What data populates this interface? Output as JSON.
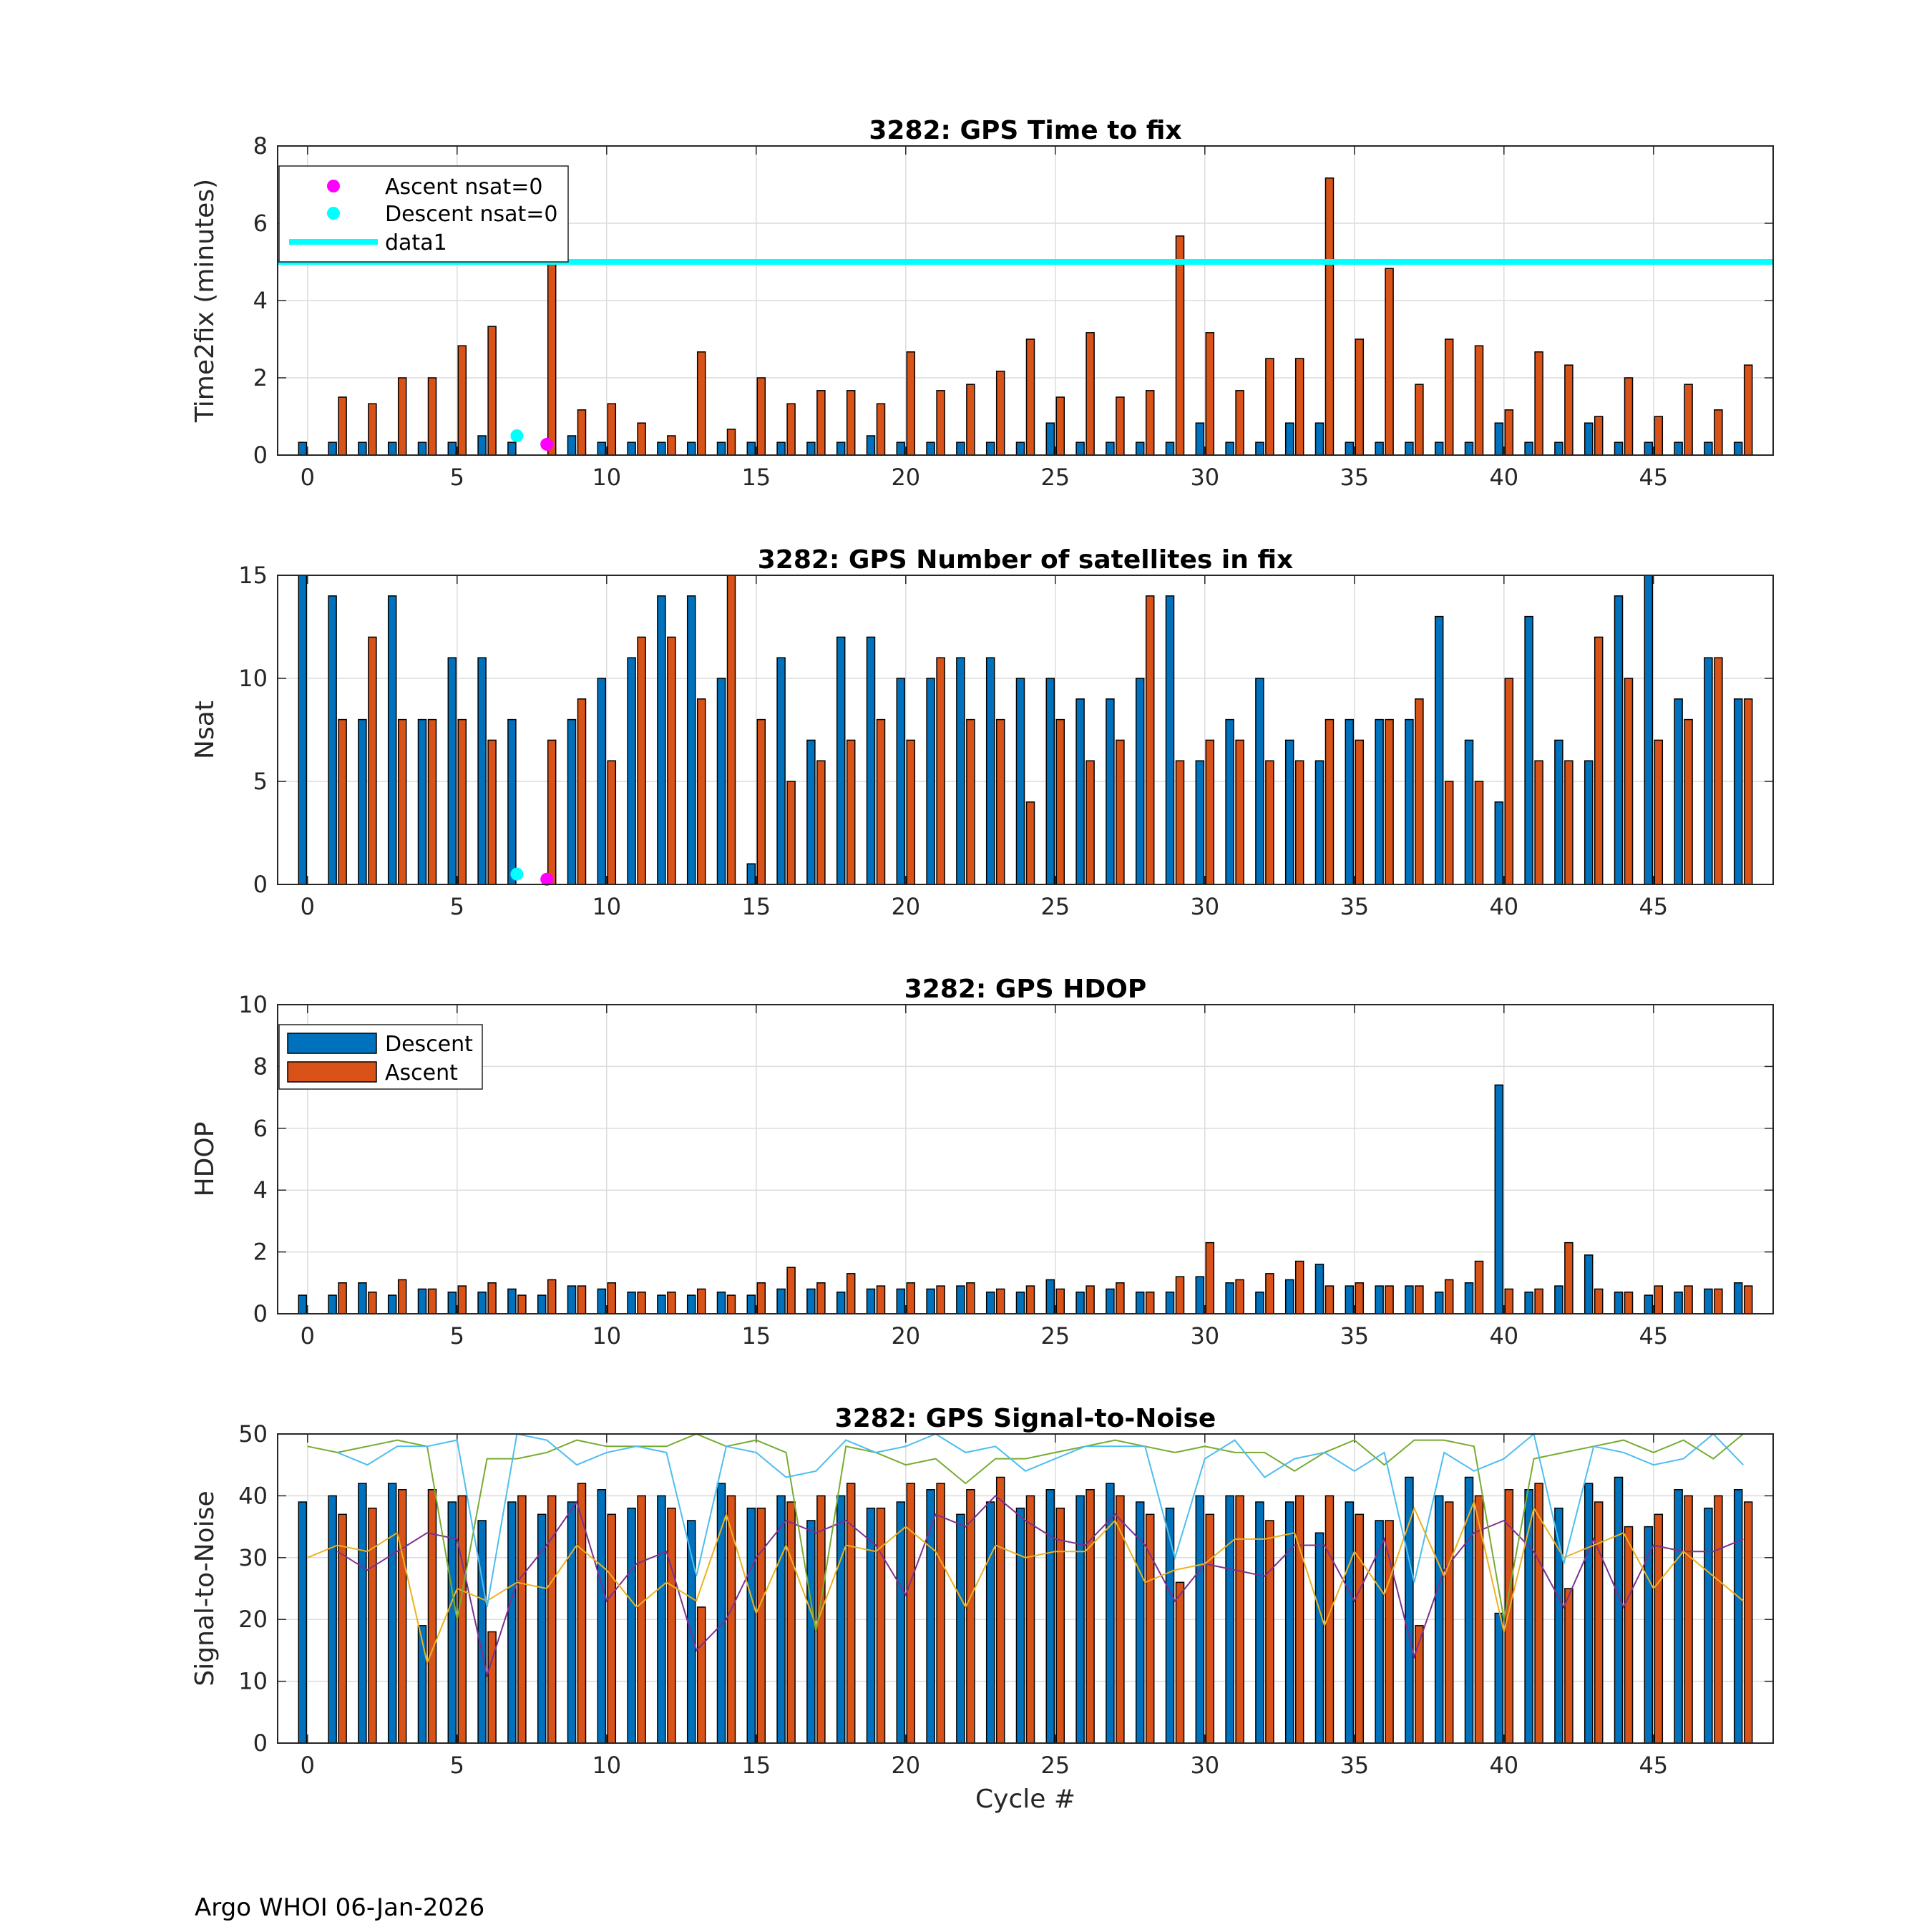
{
  "footer": "Argo WHOI 06-Jan-2026",
  "colors": {
    "descent": "#0072BD",
    "ascent": "#D95319",
    "threshold": "#00FFFF",
    "ascent_nsat0": "#FF00FF",
    "descent_nsat0": "#00FFFF",
    "snr_lines": [
      "#7E2F8E",
      "#EDB120",
      "#77AC30",
      "#4DBEEE"
    ]
  },
  "chart_data": [
    {
      "type": "bar",
      "title": "3282: GPS Time to fix",
      "xlabel": "",
      "ylabel": "Time2fix (minutes)",
      "xlim": [
        -1,
        49
      ],
      "ylim": [
        0,
        8
      ],
      "xticks": [
        "0",
        "5",
        "10",
        "15",
        "20",
        "25",
        "30",
        "35",
        "40",
        "45"
      ],
      "yticks": [
        "0",
        "2",
        "4",
        "6",
        "8"
      ],
      "grid": true,
      "legend_position": "top-left",
      "legend": [
        "Ascent nsat=0",
        "Descent nsat=0",
        "data1"
      ],
      "x": [
        0,
        1,
        2,
        3,
        4,
        5,
        6,
        7,
        8,
        9,
        10,
        11,
        12,
        13,
        14,
        15,
        16,
        17,
        18,
        19,
        20,
        21,
        22,
        23,
        24,
        25,
        26,
        27,
        28,
        29,
        30,
        31,
        32,
        33,
        34,
        35,
        36,
        37,
        38,
        39,
        40,
        41,
        42,
        43,
        44,
        45,
        46,
        47,
        48
      ],
      "series": [
        {
          "name": "Descent",
          "values": [
            0.33,
            0.33,
            0.33,
            0.33,
            0.33,
            0.33,
            0.5,
            0.33,
            null,
            0.5,
            0.33,
            0.33,
            0.33,
            0.33,
            0.33,
            0.33,
            0.33,
            0.33,
            0.33,
            0.5,
            0.33,
            0.33,
            0.33,
            0.33,
            0.33,
            0.83,
            0.33,
            0.33,
            0.33,
            0.33,
            0.83,
            0.33,
            0.33,
            0.83,
            0.83,
            0.33,
            0.33,
            0.33,
            0.33,
            0.33,
            0.83,
            0.33,
            0.33,
            0.83,
            0.33,
            0.33,
            0.33,
            0.33,
            0.33
          ]
        },
        {
          "name": "Ascent",
          "values": [
            null,
            1.5,
            1.33,
            2.0,
            2.0,
            2.83,
            3.33,
            null,
            5.0,
            1.17,
            1.33,
            0.83,
            0.5,
            2.67,
            0.67,
            2.0,
            1.33,
            1.67,
            1.67,
            1.33,
            2.67,
            1.67,
            1.83,
            2.17,
            3.0,
            1.5,
            3.17,
            1.5,
            1.67,
            5.67,
            3.17,
            1.67,
            2.5,
            2.5,
            7.17,
            3.0,
            4.83,
            1.83,
            3.0,
            2.83,
            1.17,
            2.67,
            2.33,
            1.0,
            2.0,
            1.0,
            1.83,
            1.17,
            2.33
          ]
        }
      ],
      "markers": [
        {
          "name": "Ascent nsat=0",
          "x": 8,
          "y": 0.28
        },
        {
          "name": "Descent nsat=0",
          "x": 7,
          "y": 0.5
        }
      ],
      "hline": {
        "name": "data1",
        "y": 5
      }
    },
    {
      "type": "bar",
      "title": "3282: GPS Number of satellites in fix",
      "xlabel": "",
      "ylabel": "Nsat",
      "xlim": [
        -1,
        49
      ],
      "ylim": [
        0,
        15
      ],
      "xticks": [
        "0",
        "5",
        "10",
        "15",
        "20",
        "25",
        "30",
        "35",
        "40",
        "45"
      ],
      "yticks": [
        "0",
        "5",
        "10",
        "15"
      ],
      "grid": true,
      "x": [
        0,
        1,
        2,
        3,
        4,
        5,
        6,
        7,
        8,
        9,
        10,
        11,
        12,
        13,
        14,
        15,
        16,
        17,
        18,
        19,
        20,
        21,
        22,
        23,
        24,
        25,
        26,
        27,
        28,
        29,
        30,
        31,
        32,
        33,
        34,
        35,
        36,
        37,
        38,
        39,
        40,
        41,
        42,
        43,
        44,
        45,
        46,
        47,
        48
      ],
      "series": [
        {
          "name": "Descent",
          "values": [
            15,
            14,
            8,
            14,
            8,
            11,
            11,
            8,
            null,
            8,
            10,
            11,
            14,
            14,
            10,
            1,
            11,
            7,
            12,
            12,
            10,
            10,
            11,
            11,
            10,
            10,
            9,
            9,
            10,
            14,
            6,
            8,
            10,
            7,
            6,
            8,
            8,
            8,
            13,
            7,
            4,
            13,
            7,
            6,
            14,
            15,
            9,
            11,
            9
          ]
        },
        {
          "name": "Ascent",
          "values": [
            null,
            8,
            12,
            8,
            8,
            8,
            7,
            null,
            7,
            9,
            6,
            12,
            12,
            9,
            15,
            8,
            5,
            6,
            7,
            8,
            7,
            11,
            8,
            8,
            4,
            8,
            6,
            7,
            14,
            6,
            7,
            7,
            6,
            6,
            8,
            7,
            8,
            9,
            5,
            5,
            10,
            6,
            6,
            12,
            10,
            7,
            8,
            11,
            9
          ]
        }
      ],
      "markers": [
        {
          "name": "Ascent nsat=0",
          "x": 8,
          "y": 0.25
        },
        {
          "name": "Descent nsat=0",
          "x": 7,
          "y": 0.5
        }
      ]
    },
    {
      "type": "bar",
      "title": "3282: GPS HDOP",
      "xlabel": "",
      "ylabel": "HDOP",
      "xlim": [
        -1,
        49
      ],
      "ylim": [
        0,
        10
      ],
      "xticks": [
        "0",
        "5",
        "10",
        "15",
        "20",
        "25",
        "30",
        "35",
        "40",
        "45"
      ],
      "yticks": [
        "0",
        "2",
        "4",
        "6",
        "8",
        "10"
      ],
      "grid": true,
      "legend_position": "top-left",
      "legend": [
        "Descent",
        "Ascent"
      ],
      "x": [
        0,
        1,
        2,
        3,
        4,
        5,
        6,
        7,
        8,
        9,
        10,
        11,
        12,
        13,
        14,
        15,
        16,
        17,
        18,
        19,
        20,
        21,
        22,
        23,
        24,
        25,
        26,
        27,
        28,
        29,
        30,
        31,
        32,
        33,
        34,
        35,
        36,
        37,
        38,
        39,
        40,
        41,
        42,
        43,
        44,
        45,
        46,
        47,
        48
      ],
      "series": [
        {
          "name": "Descent",
          "values": [
            0.6,
            0.6,
            1.0,
            0.6,
            0.8,
            0.7,
            0.7,
            0.8,
            0.6,
            0.9,
            0.8,
            0.7,
            0.6,
            0.6,
            0.7,
            0.6,
            0.8,
            0.8,
            0.7,
            0.8,
            0.8,
            0.8,
            0.9,
            0.7,
            0.7,
            1.1,
            0.7,
            0.8,
            0.7,
            0.7,
            1.2,
            1.0,
            0.7,
            1.1,
            1.6,
            0.9,
            0.9,
            0.9,
            0.7,
            1.0,
            7.4,
            0.7,
            0.9,
            1.9,
            0.7,
            0.6,
            0.7,
            0.8,
            1.0
          ]
        },
        {
          "name": "Ascent",
          "values": [
            null,
            1.0,
            0.7,
            1.1,
            0.8,
            0.9,
            1.0,
            0.6,
            1.1,
            0.9,
            1.0,
            0.7,
            0.7,
            0.8,
            0.6,
            1.0,
            1.5,
            1.0,
            1.3,
            0.9,
            1.0,
            0.9,
            1.0,
            0.8,
            0.9,
            0.8,
            0.9,
            1.0,
            0.7,
            1.2,
            2.3,
            1.1,
            1.3,
            1.7,
            0.9,
            1.0,
            0.9,
            0.9,
            1.1,
            1.7,
            0.8,
            0.8,
            2.3,
            0.8,
            0.7,
            0.9,
            0.9,
            0.8,
            0.9
          ]
        }
      ]
    },
    {
      "type": "bar",
      "title": "3282: GPS Signal-to-Noise",
      "xlabel": "Cycle #",
      "ylabel": "Signal-to-Noise",
      "xlim": [
        -1,
        49
      ],
      "ylim": [
        0,
        50
      ],
      "xticks": [
        "0",
        "5",
        "10",
        "15",
        "20",
        "25",
        "30",
        "35",
        "40",
        "45"
      ],
      "yticks": [
        "0",
        "10",
        "20",
        "30",
        "40",
        "50"
      ],
      "grid": true,
      "x": [
        0,
        1,
        2,
        3,
        4,
        5,
        6,
        7,
        8,
        9,
        10,
        11,
        12,
        13,
        14,
        15,
        16,
        17,
        18,
        19,
        20,
        21,
        22,
        23,
        24,
        25,
        26,
        27,
        28,
        29,
        30,
        31,
        32,
        33,
        34,
        35,
        36,
        37,
        38,
        39,
        40,
        41,
        42,
        43,
        44,
        45,
        46,
        47,
        48
      ],
      "series": [
        {
          "name": "Descent",
          "values": [
            39,
            40,
            42,
            42,
            19,
            39,
            36,
            39,
            37,
            39,
            41,
            38,
            40,
            36,
            42,
            38,
            40,
            36,
            40,
            38,
            39,
            41,
            37,
            39,
            38,
            41,
            40,
            42,
            39,
            38,
            40,
            40,
            39,
            39,
            34,
            39,
            36,
            43,
            40,
            43,
            21,
            41,
            38,
            42,
            43,
            35,
            41,
            38,
            41
          ]
        },
        {
          "name": "Ascent",
          "values": [
            null,
            37,
            38,
            41,
            41,
            40,
            18,
            40,
            40,
            42,
            37,
            40,
            38,
            22,
            40,
            38,
            39,
            40,
            42,
            38,
            42,
            42,
            41,
            43,
            40,
            38,
            41,
            40,
            37,
            26,
            37,
            40,
            36,
            40,
            40,
            37,
            36,
            19,
            39,
            40,
            41,
            42,
            25,
            39,
            35,
            37,
            40,
            40,
            39
          ]
        }
      ],
      "lines": [
        {
          "name": "snr-line-purple",
          "values": [
            null,
            31,
            28,
            31,
            34,
            33,
            11,
            26,
            32,
            39,
            23,
            29,
            31,
            15,
            20,
            30,
            36,
            34,
            36,
            32,
            24,
            37,
            35,
            40,
            36,
            33,
            32,
            37,
            32,
            23,
            29,
            28,
            27,
            32,
            32,
            23,
            33,
            14,
            28,
            34,
            36,
            31,
            22,
            33,
            22,
            32,
            31,
            31,
            33
          ]
        },
        {
          "name": "snr-line-yellow",
          "values": [
            30,
            32,
            31,
            34,
            13,
            25,
            23,
            26,
            25,
            32,
            28,
            22,
            26,
            23,
            37,
            21,
            32,
            19,
            32,
            31,
            35,
            31,
            22,
            32,
            30,
            31,
            31,
            36,
            26,
            28,
            29,
            33,
            33,
            34,
            19,
            31,
            24,
            38,
            27,
            39,
            18,
            38,
            30,
            32,
            34,
            25,
            31,
            27,
            23
          ]
        },
        {
          "name": "snr-line-green",
          "values": [
            48,
            47,
            48,
            49,
            48,
            20,
            46,
            46,
            47,
            49,
            48,
            48,
            48,
            50,
            48,
            49,
            47,
            18,
            48,
            47,
            45,
            46,
            42,
            46,
            46,
            47,
            48,
            49,
            48,
            47,
            48,
            47,
            47,
            44,
            47,
            49,
            45,
            49,
            49,
            48,
            20,
            46,
            47,
            48,
            49,
            47,
            49,
            46,
            50
          ]
        },
        {
          "name": "snr-line-blue",
          "values": [
            null,
            47,
            45,
            48,
            48,
            49,
            22,
            50,
            49,
            45,
            47,
            48,
            47,
            27,
            48,
            47,
            43,
            44,
            49,
            47,
            48,
            50,
            47,
            48,
            44,
            46,
            48,
            48,
            48,
            30,
            46,
            49,
            43,
            46,
            47,
            44,
            47,
            26,
            47,
            44,
            46,
            50,
            29,
            48,
            47,
            45,
            46,
            50,
            45
          ]
        }
      ]
    }
  ]
}
